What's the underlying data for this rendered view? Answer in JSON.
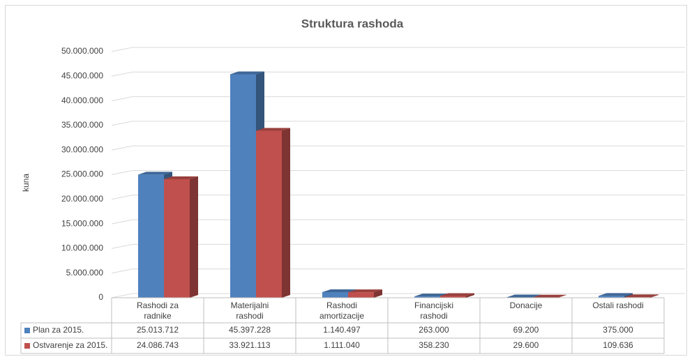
{
  "chart_data": {
    "type": "bar3d",
    "title": "Struktura rashoda",
    "ylabel": "kuna",
    "categories": [
      "Rashodi za radnike",
      "Materijalni rashodi",
      "Rashodi amortizacije",
      "Financijski rashodi",
      "Donacije",
      "Ostali rashodi"
    ],
    "series": [
      {
        "name": "Plan za 2015.",
        "color": "#4f81bd",
        "values": [
          25013712,
          45397228,
          1140497,
          263000,
          69200,
          375000
        ],
        "value_labels": [
          "25.013.712",
          "45.397.228",
          "1.140.497",
          "263.000",
          "69.200",
          "375.000"
        ]
      },
      {
        "name": "Ostvarenje za 2015.",
        "color": "#c0504d",
        "values": [
          24086743,
          33921113,
          1111040,
          358230,
          29600,
          109636
        ],
        "value_labels": [
          "24.086.743",
          "33.921.113",
          "1.111.040",
          "358.230",
          "29.600",
          "109.636"
        ]
      }
    ],
    "ylim": [
      0,
      50000000
    ],
    "yticks": [
      0,
      {
        "value": 5000000,
        "label": "5.000.000"
      },
      {
        "value": 10000000,
        "label": "10.000.000"
      },
      {
        "value": 15000000,
        "label": "15.000.000"
      },
      {
        "value": 20000000,
        "label": "20.000.000"
      },
      {
        "value": 25000000,
        "label": "25.000.000"
      },
      {
        "value": 30000000,
        "label": "30.000.000"
      },
      {
        "value": 35000000,
        "label": "35.000.000"
      },
      {
        "value": 40000000,
        "label": "40.000.000"
      },
      {
        "value": 45000000,
        "label": "45.000.000"
      },
      {
        "value": 50000000,
        "label": "50.000.000"
      }
    ],
    "grid": true,
    "legend": "table"
  }
}
